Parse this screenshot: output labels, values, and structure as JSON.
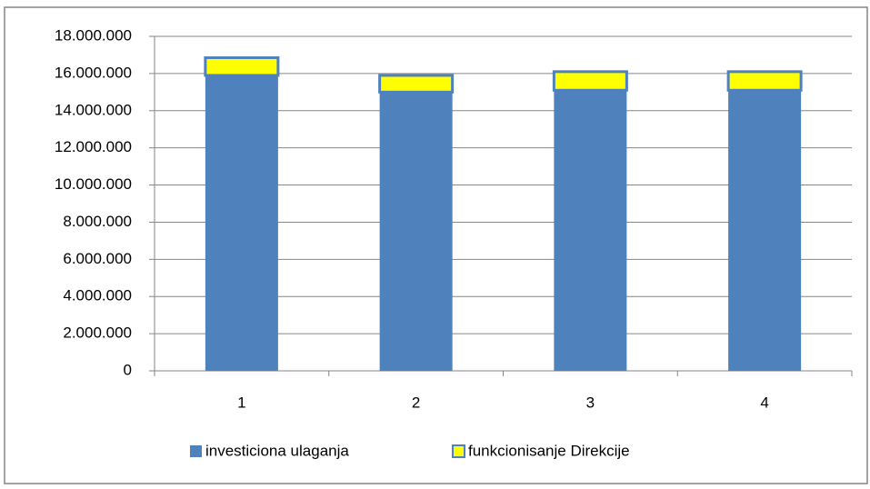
{
  "chart_data": {
    "type": "stacked_bar",
    "categories": [
      "1",
      "2",
      "3",
      "4"
    ],
    "series": [
      {
        "name": "investiciona ulaganja",
        "color": "#4f81bd",
        "values": [
          15900000,
          15000000,
          15100000,
          15100000
        ]
      },
      {
        "name": "funkcionisanje Direkcije",
        "color": "#ffff00",
        "values": [
          950000,
          900000,
          1000000,
          1000000
        ]
      }
    ],
    "ylim": [
      0,
      18000000
    ],
    "yticks": [
      0,
      {
        "value": 2000000,
        "label": "2.000.000"
      },
      {
        "value": 4000000,
        "label": "4.000.000"
      },
      {
        "value": 6000000,
        "label": "6.000.000"
      },
      {
        "value": 8000000,
        "label": "8.000.000"
      },
      {
        "value": 10000000,
        "label": "10.000.000"
      },
      {
        "value": 12000000,
        "label": "12.000.000"
      },
      {
        "value": 14000000,
        "label": "14.000.000"
      },
      {
        "value": 16000000,
        "label": "16.000.000"
      },
      {
        "value": 18000000,
        "label": "18.000.000"
      }
    ],
    "grid": true,
    "legend": "bottom"
  }
}
